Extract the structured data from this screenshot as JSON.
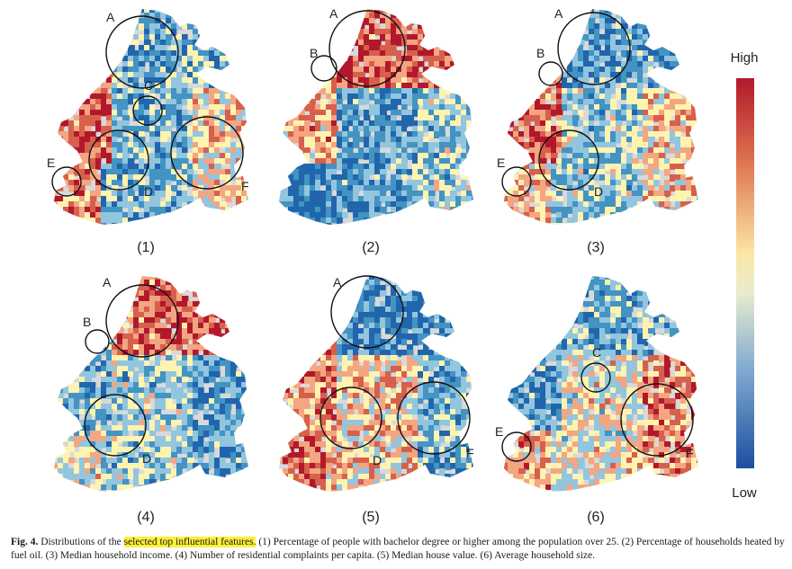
{
  "legend": {
    "high_label": "High",
    "low_label": "Low",
    "colors": [
      "#b2182b",
      "#d6604d",
      "#f4a582",
      "#fff3b0",
      "#92c5de",
      "#4393c3",
      "#2166ac"
    ]
  },
  "panels": [
    {
      "label": "(1)",
      "circles": [
        {
          "name": "A"
        },
        {
          "name": "C"
        },
        {
          "name": "D"
        },
        {
          "name": "E"
        },
        {
          "name": "F"
        }
      ]
    },
    {
      "label": "(2)",
      "circles": [
        {
          "name": "A"
        },
        {
          "name": "B"
        }
      ]
    },
    {
      "label": "(3)",
      "circles": [
        {
          "name": "A"
        },
        {
          "name": "B"
        },
        {
          "name": "D"
        },
        {
          "name": "E"
        }
      ]
    },
    {
      "label": "(4)",
      "circles": [
        {
          "name": "A"
        },
        {
          "name": "B"
        },
        {
          "name": "D"
        }
      ]
    },
    {
      "label": "(5)",
      "circles": [
        {
          "name": "A"
        },
        {
          "name": "D"
        },
        {
          "name": "F"
        }
      ]
    },
    {
      "label": "(6)",
      "circles": [
        {
          "name": "C"
        },
        {
          "name": "E"
        },
        {
          "name": "F"
        }
      ]
    }
  ],
  "caption": {
    "fig_no": "Fig. 4.",
    "pre": " Distributions of the ",
    "highlight": "selected top influential features.",
    "rest": " (1) Percentage of people with bachelor degree or higher among the population over 25. (2) Percentage of households heated by fuel oil. (3) Median household income. (4) Number of residential complaints per capita. (5) Median house value. (6) Average household size."
  }
}
